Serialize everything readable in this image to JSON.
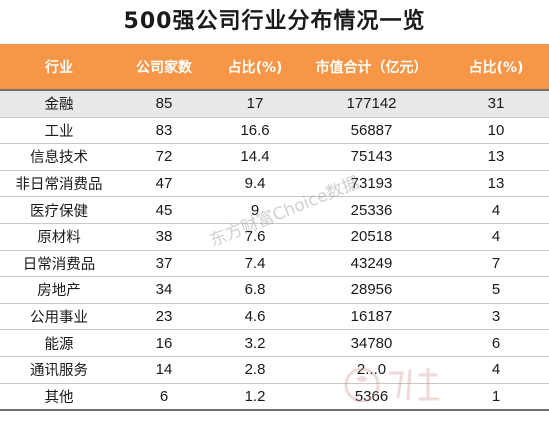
{
  "title": "500强公司行业分布情况一览",
  "table": {
    "headers": [
      "行业",
      "公司家数",
      "占比(%)",
      "市值合计（亿元）",
      "占比(%)"
    ],
    "rows": [
      {
        "industry": "金融",
        "count": "85",
        "count_pct": "17",
        "market_cap": "177142",
        "cap_pct": "31"
      },
      {
        "industry": "工业",
        "count": "83",
        "count_pct": "16.6",
        "market_cap": "56887",
        "cap_pct": "10"
      },
      {
        "industry": "信息技术",
        "count": "72",
        "count_pct": "14.4",
        "market_cap": "75143",
        "cap_pct": "13"
      },
      {
        "industry": "非日常消费品",
        "count": "47",
        "count_pct": "9.4",
        "market_cap": "73193",
        "cap_pct": "13"
      },
      {
        "industry": "医疗保健",
        "count": "45",
        "count_pct": "9",
        "market_cap": "25336",
        "cap_pct": "4"
      },
      {
        "industry": "原材料",
        "count": "38",
        "count_pct": "7.6",
        "market_cap": "20518",
        "cap_pct": "4"
      },
      {
        "industry": "日常消费品",
        "count": "37",
        "count_pct": "7.4",
        "market_cap": "43249",
        "cap_pct": "7"
      },
      {
        "industry": "房地产",
        "count": "34",
        "count_pct": "6.8",
        "market_cap": "28956",
        "cap_pct": "5"
      },
      {
        "industry": "公用事业",
        "count": "23",
        "count_pct": "4.6",
        "market_cap": "16187",
        "cap_pct": "3"
      },
      {
        "industry": "能源",
        "count": "16",
        "count_pct": "3.2",
        "market_cap": "34780",
        "cap_pct": "6"
      },
      {
        "industry": "通讯服务",
        "count": "14",
        "count_pct": "2.8",
        "market_cap": "2...0",
        "cap_pct": "4"
      },
      {
        "industry": "其他",
        "count": "6",
        "count_pct": "1.2",
        "market_cap": "5366",
        "cap_pct": "1"
      }
    ]
  },
  "watermark": "东方财富Choice数据",
  "colors": {
    "header_bg": "#f79646",
    "header_text": "#ffffff",
    "first_row_bg": "#e8e8e8"
  }
}
